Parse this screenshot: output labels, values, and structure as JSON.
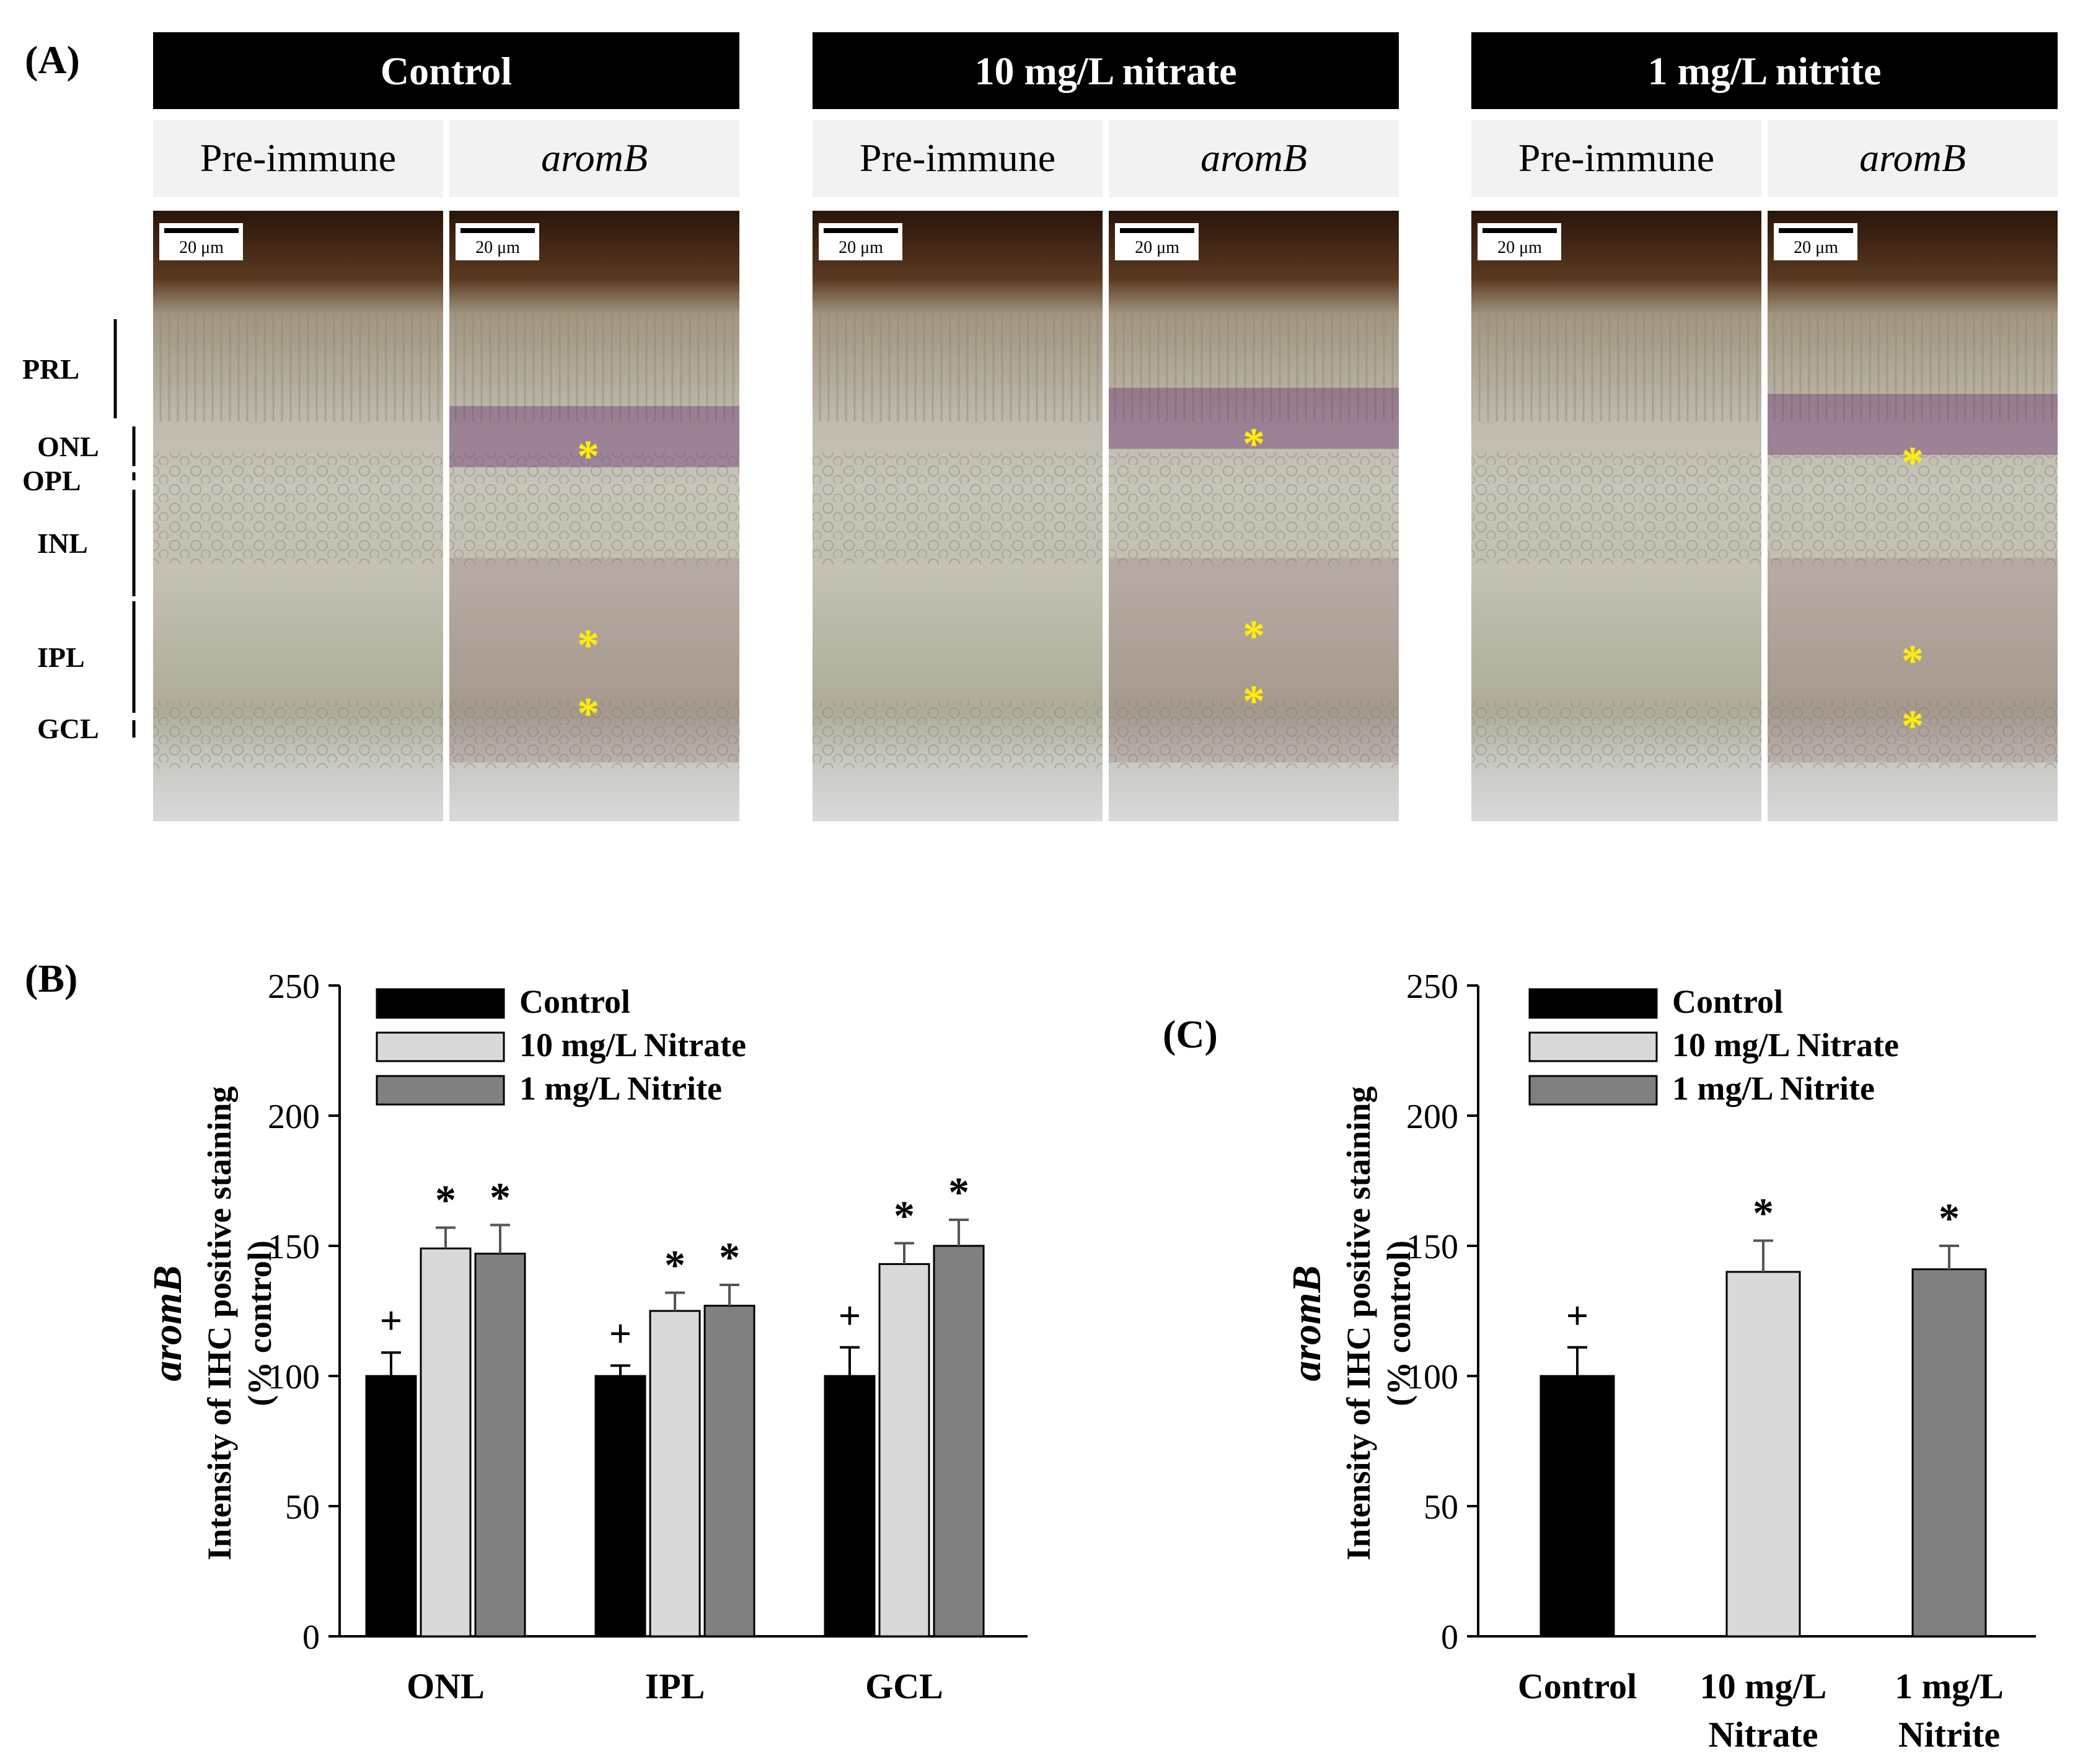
{
  "panel_a": {
    "label": "(A)",
    "scale_bar": "20 μm",
    "groups": [
      {
        "title": "Control",
        "col1": "Pre-immune",
        "col2": "aromB"
      },
      {
        "title": "10 mg/L nitrate",
        "col1": "Pre-immune",
        "col2": "aromB"
      },
      {
        "title": "1 mg/L nitrite",
        "col1": "Pre-immune",
        "col2": "aromB"
      }
    ],
    "layers": [
      "PRL",
      "ONL",
      "OPL",
      "INL",
      "IPL",
      "GCL"
    ],
    "marker": "*"
  },
  "chart_data": [
    {
      "type": "bar",
      "panel": "(B)",
      "categories": [
        "ONL",
        "IPL",
        "GCL"
      ],
      "ylabel_lines": [
        "aromB",
        "Intensity of IHC positive staining",
        "(% control)"
      ],
      "ylim": [
        0,
        250
      ],
      "yticks": [
        0,
        50,
        100,
        150,
        200,
        250
      ],
      "legend": [
        "Control",
        "10 mg/L Nitrate",
        "1 mg/L Nitrite"
      ],
      "legend_position": "top-left",
      "colors": [
        "#000000",
        "#d9d9d9",
        "#808080"
      ],
      "series": [
        {
          "name": "Control",
          "values": [
            100,
            100,
            100
          ],
          "errors": [
            9,
            4,
            11
          ],
          "marks": [
            "+",
            "+",
            "+"
          ]
        },
        {
          "name": "10 mg/L Nitrate",
          "values": [
            149,
            125,
            143
          ],
          "errors": [
            8,
            7,
            8
          ],
          "marks": [
            "*",
            "*",
            "*"
          ]
        },
        {
          "name": "1 mg/L Nitrite",
          "values": [
            147,
            127,
            150
          ],
          "errors": [
            11,
            8,
            10
          ],
          "marks": [
            "*",
            "*",
            "*"
          ]
        }
      ]
    },
    {
      "type": "bar",
      "panel": "(C)",
      "categories": [
        [
          "Control"
        ],
        [
          "10 mg/L",
          "Nitrate"
        ],
        [
          "1 mg/L",
          "Nitrite"
        ]
      ],
      "ylabel_lines": [
        "aromB",
        "Intensity of IHC positive staining",
        "(% control)"
      ],
      "ylim": [
        0,
        250
      ],
      "yticks": [
        0,
        50,
        100,
        150,
        200,
        250
      ],
      "legend": [
        "Control",
        "10 mg/L Nitrate",
        "1 mg/L Nitrite"
      ],
      "legend_position": "top-left",
      "colors": [
        "#000000",
        "#d9d9d9",
        "#808080"
      ],
      "values": [
        100,
        140,
        141
      ],
      "errors": [
        11,
        12,
        9
      ],
      "marks": [
        "+",
        "*",
        "*"
      ]
    }
  ]
}
